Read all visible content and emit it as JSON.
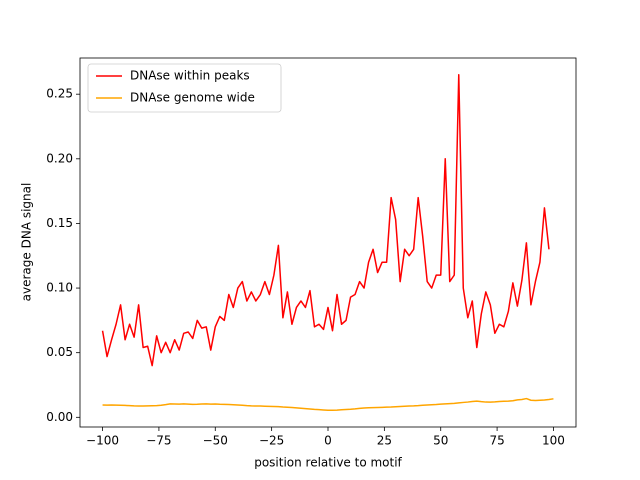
{
  "chart_data": {
    "type": "line",
    "xlabel": "position relative to motif",
    "ylabel": "average DNA signal",
    "x": [
      -100,
      -98,
      -96,
      -94,
      -92,
      -90,
      -88,
      -86,
      -84,
      -82,
      -80,
      -78,
      -76,
      -74,
      -72,
      -70,
      -68,
      -66,
      -64,
      -62,
      -60,
      -58,
      -56,
      -54,
      -52,
      -50,
      -48,
      -46,
      -44,
      -42,
      -40,
      -38,
      -36,
      -34,
      -32,
      -30,
      -28,
      -26,
      -24,
      -22,
      -20,
      -18,
      -16,
      -14,
      -12,
      -10,
      -8,
      -6,
      -4,
      -2,
      0,
      2,
      4,
      6,
      8,
      10,
      12,
      14,
      16,
      18,
      20,
      22,
      24,
      26,
      28,
      30,
      32,
      34,
      36,
      38,
      40,
      42,
      44,
      46,
      48,
      50,
      52,
      54,
      56,
      58,
      60,
      62,
      64,
      66,
      68,
      70,
      72,
      74,
      76,
      78,
      80,
      82,
      84,
      86,
      88,
      90,
      92,
      94,
      96,
      98,
      100
    ],
    "series": [
      {
        "name": "DNAse within peaks",
        "color": "#ff0000",
        "values": [
          0.067,
          0.047,
          0.06,
          0.072,
          0.087,
          0.06,
          0.072,
          0.062,
          0.087,
          0.054,
          0.055,
          0.04,
          0.063,
          0.05,
          0.058,
          0.05,
          0.06,
          0.052,
          0.065,
          0.066,
          0.061,
          0.075,
          0.069,
          0.07,
          0.052,
          0.07,
          0.078,
          0.075,
          0.095,
          0.085,
          0.1,
          0.105,
          0.09,
          0.097,
          0.09,
          0.095,
          0.105,
          0.095,
          0.11,
          0.133,
          0.077,
          0.097,
          0.072,
          0.085,
          0.09,
          0.085,
          0.098,
          0.07,
          0.072,
          0.068,
          0.085,
          0.067,
          0.095,
          0.072,
          0.075,
          0.093,
          0.095,
          0.105,
          0.1,
          0.12,
          0.13,
          0.112,
          0.12,
          0.12,
          0.17,
          0.153,
          0.105,
          0.13,
          0.125,
          0.13,
          0.17,
          0.14,
          0.105,
          0.1,
          0.11,
          0.11,
          0.2,
          0.105,
          0.11,
          0.265,
          0.1,
          0.077,
          0.09,
          0.054,
          0.08,
          0.097,
          0.087,
          0.065,
          0.072,
          0.07,
          0.082,
          0.104,
          0.086,
          0.106,
          0.135,
          0.087,
          0.105,
          0.12,
          0.162,
          0.13,
          null
        ]
      },
      {
        "name": "DNAse genome wide",
        "color": "#ffa500",
        "values": [
          0.0095,
          0.0094,
          0.0095,
          0.0094,
          0.0093,
          0.0092,
          0.009,
          0.0088,
          0.0087,
          0.0087,
          0.0088,
          0.0089,
          0.009,
          0.0093,
          0.0098,
          0.0104,
          0.0103,
          0.0102,
          0.0104,
          0.0102,
          0.01,
          0.0101,
          0.0103,
          0.0104,
          0.0102,
          0.0103,
          0.0101,
          0.01,
          0.0099,
          0.0097,
          0.0095,
          0.0093,
          0.009,
          0.0088,
          0.0087,
          0.0087,
          0.0086,
          0.0085,
          0.0084,
          0.0083,
          0.008,
          0.0078,
          0.0076,
          0.0073,
          0.007,
          0.0067,
          0.0064,
          0.0061,
          0.0059,
          0.0057,
          0.0055,
          0.0055,
          0.0056,
          0.0058,
          0.006,
          0.0062,
          0.0065,
          0.0069,
          0.0072,
          0.0074,
          0.0075,
          0.0076,
          0.0077,
          0.0079,
          0.008,
          0.0082,
          0.0084,
          0.0086,
          0.0087,
          0.0088,
          0.009,
          0.0093,
          0.0095,
          0.0097,
          0.0099,
          0.0102,
          0.0104,
          0.0106,
          0.0108,
          0.0112,
          0.0115,
          0.0118,
          0.0122,
          0.0125,
          0.0121,
          0.0118,
          0.0117,
          0.0119,
          0.0122,
          0.0124,
          0.0125,
          0.0128,
          0.0135,
          0.0138,
          0.0145,
          0.0132,
          0.013,
          0.0132,
          0.0134,
          0.0138,
          0.0143
        ]
      }
    ],
    "xlim": [
      -110,
      110
    ],
    "ylim": [
      -0.0075,
      0.278
    ],
    "xticks": [
      {
        "value": -100,
        "label": "−100"
      },
      {
        "value": -75,
        "label": "−75"
      },
      {
        "value": -50,
        "label": "−50"
      },
      {
        "value": -25,
        "label": "−25"
      },
      0,
      25,
      50,
      75,
      100
    ],
    "yticks": [
      {
        "value": 0,
        "label": "0.00"
      },
      {
        "value": 0.05,
        "label": "0.05"
      },
      {
        "value": 0.1,
        "label": "0.10"
      },
      {
        "value": 0.15,
        "label": "0.15"
      },
      {
        "value": 0.2,
        "label": "0.20"
      },
      {
        "value": 0.25,
        "label": "0.25"
      }
    ],
    "legend": "upper left"
  }
}
